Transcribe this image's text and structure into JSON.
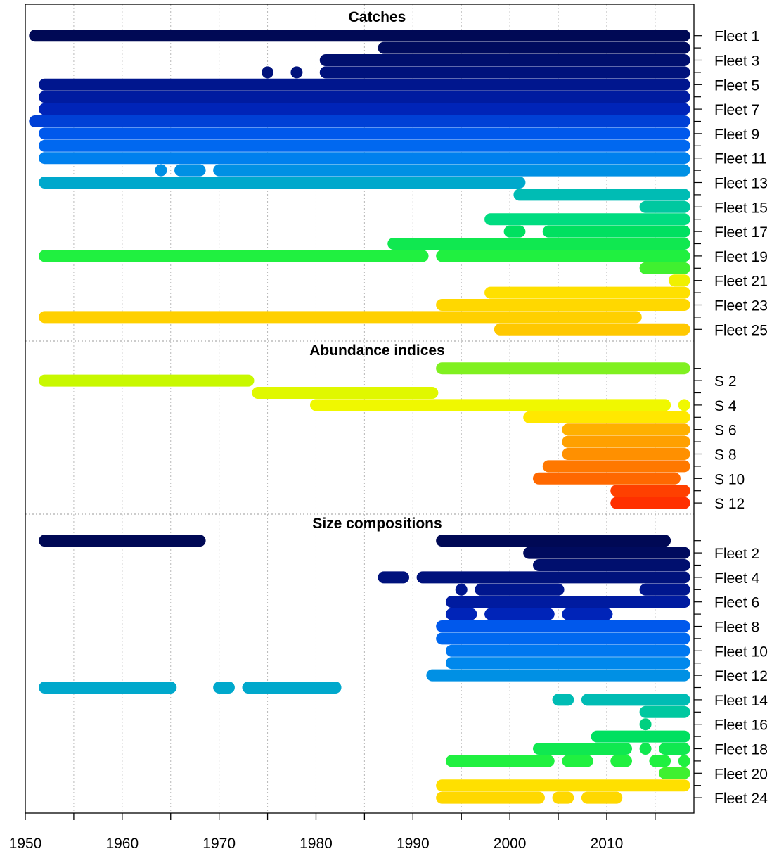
{
  "chart_data": {
    "type": "timeline",
    "x_range": [
      1950,
      2019
    ],
    "x_ticks": [
      1950,
      1960,
      1970,
      1980,
      1990,
      2000,
      2010
    ],
    "x_minor_ticks": [
      1955,
      1965,
      1975,
      1985,
      1995,
      2005,
      2015
    ],
    "grid": true,
    "sections": [
      {
        "title": "Catches",
        "rows": [
          {
            "label": "Fleet 1",
            "color": "#000955",
            "segments": [
              [
                1951,
                2018
              ]
            ]
          },
          {
            "label": "",
            "color": "#000B5E",
            "segments": [
              [
                1987,
                2018
              ]
            ]
          },
          {
            "label": "Fleet 3",
            "color": "#000F6E",
            "segments": [
              [
                1981,
                2018
              ]
            ]
          },
          {
            "label": "",
            "color": "#00127C",
            "segments": [
              [
                1975,
                1975
              ],
              [
                1978,
                1978
              ],
              [
                1981,
                2018
              ]
            ]
          },
          {
            "label": "Fleet 5",
            "color": "#00168E",
            "segments": [
              [
                1952,
                2018
              ]
            ]
          },
          {
            "label": "",
            "color": "#001BA0",
            "segments": [
              [
                1952,
                2018
              ]
            ]
          },
          {
            "label": "Fleet 7",
            "color": "#0024B8",
            "segments": [
              [
                1952,
                2018
              ]
            ]
          },
          {
            "label": "",
            "color": "#0040D6",
            "segments": [
              [
                1951,
                2018
              ]
            ]
          },
          {
            "label": "Fleet 9",
            "color": "#0058EC",
            "segments": [
              [
                1952,
                2018
              ]
            ]
          },
          {
            "label": "",
            "color": "#0068F0",
            "segments": [
              [
                1952,
                2018
              ]
            ]
          },
          {
            "label": "Fleet 11",
            "color": "#0080EE",
            "segments": [
              [
                1952,
                2018
              ]
            ]
          },
          {
            "label": "",
            "color": "#0090E4",
            "segments": [
              [
                1964,
                1964
              ],
              [
                1966,
                1968
              ],
              [
                1970,
                2018
              ]
            ]
          },
          {
            "label": "Fleet 13",
            "color": "#00A8CC",
            "segments": [
              [
                1952,
                2001
              ]
            ]
          },
          {
            "label": "",
            "color": "#00BCB4",
            "segments": [
              [
                2001,
                2018
              ]
            ]
          },
          {
            "label": "Fleet 15",
            "color": "#00C8A0",
            "segments": [
              [
                2014,
                2018
              ]
            ]
          },
          {
            "label": "",
            "color": "#00DC80",
            "segments": [
              [
                1998,
                2018
              ]
            ]
          },
          {
            "label": "Fleet 17",
            "color": "#00E060",
            "segments": [
              [
                2000,
                2001
              ],
              [
                2004,
                2018
              ]
            ]
          },
          {
            "label": "",
            "color": "#10E850",
            "segments": [
              [
                1988,
                2018
              ]
            ]
          },
          {
            "label": "Fleet 19",
            "color": "#20F040",
            "segments": [
              [
                1952,
                1991
              ],
              [
                1993,
                2018
              ]
            ]
          },
          {
            "label": "",
            "color": "#40F030",
            "segments": [
              [
                2014,
                2018
              ]
            ]
          },
          {
            "label": "Fleet 21",
            "color": "#F0F000",
            "segments": [
              [
                2017,
                2018
              ]
            ]
          },
          {
            "label": "",
            "color": "#FFE000",
            "segments": [
              [
                1998,
                2018
              ]
            ]
          },
          {
            "label": "Fleet 23",
            "color": "#FFD800",
            "segments": [
              [
                1993,
                2018
              ]
            ]
          },
          {
            "label": "",
            "color": "#FFD000",
            "segments": [
              [
                1952,
                2013
              ]
            ]
          },
          {
            "label": "Fleet 25",
            "color": "#FFC800",
            "segments": [
              [
                1999,
                2018
              ]
            ]
          }
        ]
      },
      {
        "title": "Abundance indices",
        "rows": [
          {
            "label": "",
            "color": "#80F020",
            "segments": [
              [
                1993,
                2018
              ]
            ]
          },
          {
            "label": "S 2",
            "color": "#C8F800",
            "segments": [
              [
                1952,
                1973
              ]
            ]
          },
          {
            "label": "",
            "color": "#E0F800",
            "segments": [
              [
                1974,
                1992
              ]
            ]
          },
          {
            "label": "S 4",
            "color": "#F0F800",
            "segments": [
              [
                1980,
                2016
              ],
              [
                2018,
                2018
              ]
            ]
          },
          {
            "label": "",
            "color": "#FFE800",
            "segments": [
              [
                2002,
                2018
              ]
            ]
          },
          {
            "label": "S 6",
            "color": "#FFB000",
            "segments": [
              [
                2006,
                2018
              ]
            ]
          },
          {
            "label": "",
            "color": "#FFA000",
            "segments": [
              [
                2006,
                2018
              ]
            ]
          },
          {
            "label": "S 8",
            "color": "#FF9000",
            "segments": [
              [
                2006,
                2018
              ]
            ]
          },
          {
            "label": "",
            "color": "#FF7800",
            "segments": [
              [
                2004,
                2018
              ]
            ]
          },
          {
            "label": "S 10",
            "color": "#FF6800",
            "segments": [
              [
                2003,
                2017
              ]
            ]
          },
          {
            "label": "",
            "color": "#FF4000",
            "segments": [
              [
                2011,
                2018
              ]
            ]
          },
          {
            "label": "S 12",
            "color": "#FF3000",
            "segments": [
              [
                2011,
                2018
              ]
            ]
          }
        ]
      },
      {
        "title": "Size compositions",
        "rows": [
          {
            "label": "",
            "color": "#000955",
            "segments": [
              [
                1952,
                1968
              ],
              [
                1993,
                2016
              ]
            ]
          },
          {
            "label": "Fleet 2",
            "color": "#000B5E",
            "segments": [
              [
                2002,
                2018
              ]
            ]
          },
          {
            "label": "",
            "color": "#000F6E",
            "segments": [
              [
                2003,
                2018
              ]
            ]
          },
          {
            "label": "Fleet 4",
            "color": "#00127C",
            "segments": [
              [
                1987,
                1989
              ],
              [
                1991,
                2018
              ]
            ]
          },
          {
            "label": "",
            "color": "#00168E",
            "segments": [
              [
                1995,
                1995
              ],
              [
                1997,
                2005
              ],
              [
                2014,
                2018
              ]
            ]
          },
          {
            "label": "Fleet 6",
            "color": "#001BA0",
            "segments": [
              [
                1994,
                2018
              ]
            ]
          },
          {
            "label": "",
            "color": "#0024B8",
            "segments": [
              [
                1994,
                1996
              ],
              [
                1998,
                2004
              ],
              [
                2006,
                2010
              ]
            ]
          },
          {
            "label": "Fleet 8",
            "color": "#0058EC",
            "segments": [
              [
                1993,
                2018
              ]
            ]
          },
          {
            "label": "",
            "color": "#0068F0",
            "segments": [
              [
                1993,
                2018
              ]
            ]
          },
          {
            "label": "Fleet 10",
            "color": "#0078F0",
            "segments": [
              [
                1994,
                2018
              ]
            ]
          },
          {
            "label": "",
            "color": "#0088EC",
            "segments": [
              [
                1994,
                2018
              ]
            ]
          },
          {
            "label": "Fleet 12",
            "color": "#0090E4",
            "segments": [
              [
                1992,
                2018
              ]
            ]
          },
          {
            "label": "",
            "color": "#00A8CC",
            "segments": [
              [
                1952,
                1965
              ],
              [
                1970,
                1971
              ],
              [
                1973,
                1982
              ]
            ]
          },
          {
            "label": "Fleet 14",
            "color": "#00BCB4",
            "segments": [
              [
                2005,
                2006
              ],
              [
                2008,
                2018
              ]
            ]
          },
          {
            "label": "",
            "color": "#00C8A0",
            "segments": [
              [
                2014,
                2018
              ]
            ]
          },
          {
            "label": "Fleet 16",
            "color": "#00D080",
            "segments": [
              [
                2014,
                2014
              ]
            ]
          },
          {
            "label": "",
            "color": "#00E060",
            "segments": [
              [
                2009,
                2018
              ]
            ]
          },
          {
            "label": "Fleet 18",
            "color": "#10E850",
            "segments": [
              [
                2003,
                2012
              ],
              [
                2014,
                2014
              ],
              [
                2016,
                2018
              ]
            ]
          },
          {
            "label": "",
            "color": "#20F040",
            "segments": [
              [
                1994,
                2004
              ],
              [
                2006,
                2008
              ],
              [
                2011,
                2012
              ],
              [
                2015,
                2016
              ],
              [
                2018,
                2018
              ]
            ]
          },
          {
            "label": "Fleet 20",
            "color": "#40F030",
            "segments": [
              [
                2016,
                2018
              ]
            ]
          },
          {
            "label": "",
            "color": "#FFE000",
            "segments": [
              [
                1993,
                2018
              ]
            ]
          },
          {
            "label": "Fleet 24",
            "color": "#FFD800",
            "segments": [
              [
                1993,
                2003
              ],
              [
                2005,
                2006
              ],
              [
                2008,
                2011
              ]
            ]
          }
        ]
      }
    ]
  }
}
